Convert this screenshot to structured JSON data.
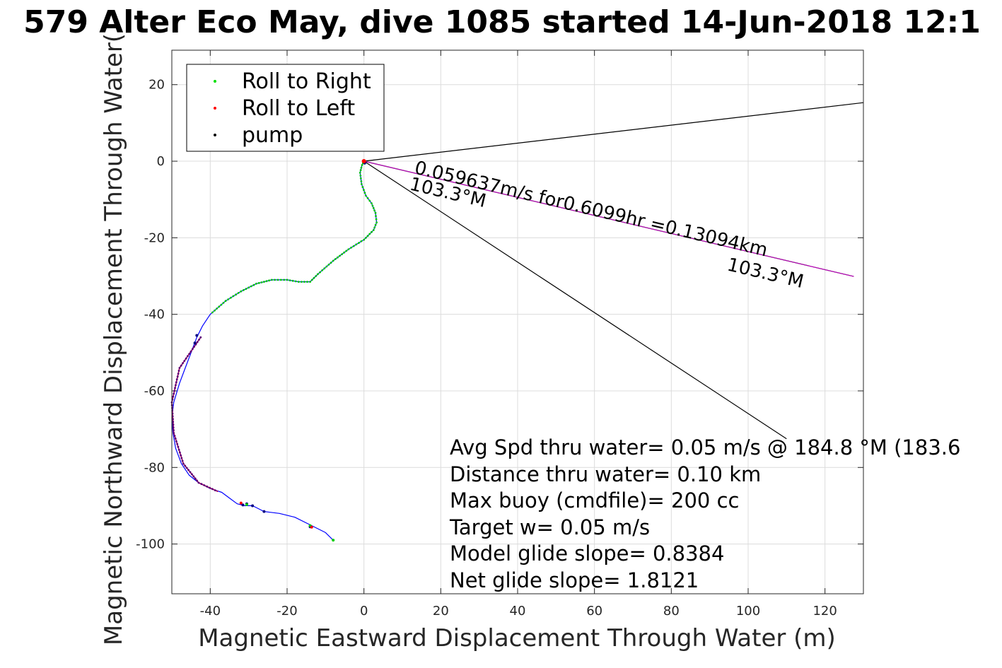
{
  "chart_data": {
    "type": "line",
    "title": "579 Alter Eco May, dive 1085 started 14-Jun-2018 12:1",
    "xlabel": "Magnetic Eastward Displacement Through Water (m)",
    "ylabel": "Magnetic Northward Displacement Through Water(",
    "xlim": [
      -50,
      130
    ],
    "ylim": [
      -113,
      29
    ],
    "xticks": [
      -40,
      -20,
      0,
      20,
      40,
      60,
      80,
      100,
      120
    ],
    "yticks": [
      20,
      0,
      -20,
      -40,
      -60,
      -80,
      -100
    ],
    "grid": true,
    "legend": {
      "placement": "top-left",
      "entries": [
        {
          "label": "Roll to Right",
          "color": "#00e000"
        },
        {
          "label": "Roll to Left",
          "color": "#ff0000"
        },
        {
          "label": "pump",
          "color": "#000000"
        }
      ]
    },
    "track": {
      "name": "track",
      "color": "#0000ff",
      "x": [
        0,
        -0.5,
        -1,
        -0.6,
        0.5,
        2,
        3,
        3.3,
        2.5,
        0,
        -4,
        -8,
        -12,
        -13.5,
        -14,
        -17,
        -20,
        -24,
        -28,
        -32,
        -36,
        -40,
        -42,
        -43.5,
        -45,
        -46.5,
        -48,
        -49.5,
        -50,
        -49.7,
        -49,
        -47.5,
        -45.5,
        -43,
        -40,
        -37,
        -35,
        -33,
        -31,
        -29,
        -26,
        -22,
        -18,
        -14,
        -10,
        -8
      ],
      "y": [
        0,
        -1,
        -3,
        -6,
        -9,
        -11,
        -13.5,
        -16,
        -18,
        -20.5,
        -23,
        -26,
        -29.5,
        -31,
        -31.5,
        -31.5,
        -31,
        -31,
        -32,
        -34,
        -36.5,
        -40,
        -43,
        -46,
        -50,
        -54,
        -58,
        -63,
        -67,
        -71,
        -75,
        -79,
        -82,
        -84,
        -85.5,
        -86.5,
        -88,
        -89.5,
        -90,
        -90,
        -91.5,
        -92,
        -93,
        -95,
        -97,
        -99
      ]
    },
    "mid_segment_x": [
      -42.5,
      -48,
      -50,
      -49.5,
      -47,
      -43,
      -38
    ],
    "mid_segment_y": [
      -46,
      -54,
      -63,
      -71,
      -79,
      -84,
      -86.3
    ],
    "mid_segment_color": "#aa0055",
    "mid_segment_name": "Roll to Left",
    "mid_segment_marker_color": "#550077",
    "pump_points_x": [
      -44,
      -43.5,
      -31.5,
      -30.5,
      -29,
      -26,
      -14,
      0.2
    ],
    "pump_points_y": [
      -47.5,
      -45.5,
      -89.8,
      -89.5,
      -90,
      -91.5,
      -95.5,
      -0.5
    ],
    "avg_vector": {
      "x": [
        0,
        110
      ],
      "y": [
        0,
        -72.5
      ],
      "color": "#000000"
    },
    "upper_line": {
      "x": [
        0,
        130
      ],
      "y": [
        0,
        15.3
      ],
      "color": "#000000"
    },
    "current_line": {
      "x": [
        0,
        127.5
      ],
      "y": [
        0,
        -30.1
      ],
      "color": "#cc00cc"
    },
    "vector_label_1": "0.059637m/s for0.6099hr =0.13094km",
    "vector_label_2": "103.3°M",
    "vector_label_3": "103.3°M",
    "annotations": [
      "Avg Spd thru water=  0.05 m/s @ 184.8 °M (183.6",
      "Distance thru water=  0.10 km",
      "Max buoy (cmdfile)= 200 cc",
      "Target w= 0.05 m/s",
      "Model glide slope= 0.8384",
      "Net glide slope= 1.8121"
    ]
  }
}
